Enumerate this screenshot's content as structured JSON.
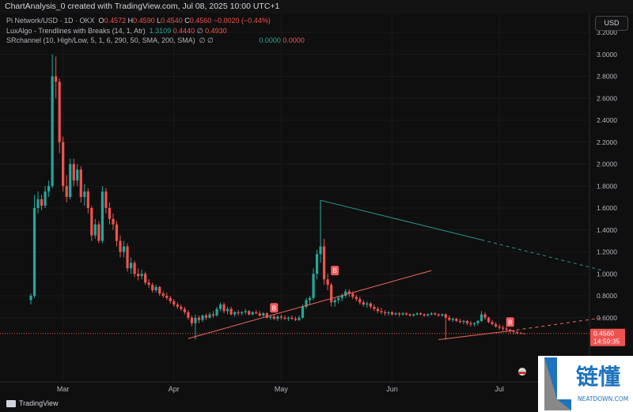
{
  "header": {
    "title": "ChartAnalysis_0 created with TradingView.com, Jul 08, 2025 10:00 UTC+1"
  },
  "legend": {
    "symbol": "Pi Network/USD · 1D · OKX",
    "o_label": "O",
    "o": "0.4572",
    "h_label": "H",
    "h": "0.4590",
    "l_label": "L",
    "l": "0.4540",
    "c_label": "C",
    "c": "0.4560",
    "change": "−0.0020 (−0.44%)",
    "ind1_name": "LuxAlgo - Trendlines with Breaks (14, 1, Atr)",
    "ind1_v1": "1.3109",
    "ind1_v2": "0.4440",
    "ind1_sym": "∅",
    "ind1_v3": "0.4930",
    "ind2_name": "SRchannel (10, High/Low, 5, 1, 6, 290, 50, SMA, 200, SMA)",
    "ind2_sym": "∅ ∅",
    "ind2_v1": "0.0000",
    "ind2_v2": "0.0000"
  },
  "currency_button": "USD",
  "price_tag": {
    "price": "0.4560",
    "countdown": "14:59:35"
  },
  "footer": {
    "brand": "TradingView"
  },
  "watermark": {
    "name": "链懂",
    "site": "NEATDOWN.COM"
  },
  "colors": {
    "up": "#26a69a",
    "down": "#ef5350",
    "resistance_line": "#2a8f8a",
    "support_line": "#f0685e",
    "break_label": "#f15b5b"
  },
  "chart_data": {
    "type": "candlestick",
    "start_date": "2025-02-20",
    "interval": "1D",
    "ylim": [
      0,
      3.2
    ],
    "yticks": [
      "0.6000",
      "0.8000",
      "1.0000",
      "1.2000",
      "1.4000",
      "1.6000",
      "1.8000",
      "2.0000",
      "2.2000",
      "2.4000",
      "2.6000",
      "2.8000",
      "3.0000",
      "3.2000"
    ],
    "xticks": [
      {
        "label": "Mar",
        "date": "2025-03-01"
      },
      {
        "label": "Apr",
        "date": "2025-04-01"
      },
      {
        "label": "May",
        "date": "2025-05-01"
      },
      {
        "label": "Jun",
        "date": "2025-06-01"
      },
      {
        "label": "Jul",
        "date": "2025-07-01"
      }
    ],
    "ohlc": [
      [
        0.76,
        0.82,
        0.72,
        0.8
      ],
      [
        0.8,
        1.72,
        0.78,
        1.6
      ],
      [
        1.6,
        1.75,
        1.55,
        1.68
      ],
      [
        1.68,
        1.72,
        1.58,
        1.62
      ],
      [
        1.62,
        1.8,
        1.6,
        1.75
      ],
      [
        1.75,
        1.85,
        1.7,
        1.8
      ],
      [
        1.8,
        3.0,
        1.78,
        2.8
      ],
      [
        2.8,
        2.98,
        2.6,
        2.75
      ],
      [
        2.75,
        2.78,
        2.1,
        2.2
      ],
      [
        2.2,
        2.25,
        1.75,
        1.8
      ],
      [
        1.8,
        1.9,
        1.65,
        1.7
      ],
      [
        1.7,
        2.05,
        1.68,
        2.0
      ],
      [
        2.0,
        2.05,
        1.8,
        1.85
      ],
      [
        1.85,
        2.0,
        1.8,
        1.95
      ],
      [
        1.95,
        1.98,
        1.65,
        1.7
      ],
      [
        1.7,
        1.82,
        1.62,
        1.75
      ],
      [
        1.75,
        1.78,
        1.55,
        1.6
      ],
      [
        1.6,
        1.62,
        1.3,
        1.35
      ],
      [
        1.35,
        1.5,
        1.32,
        1.45
      ],
      [
        1.45,
        1.48,
        1.28,
        1.3
      ],
      [
        1.3,
        1.8,
        1.28,
        1.75
      ],
      [
        1.75,
        1.78,
        1.55,
        1.6
      ],
      [
        1.6,
        1.65,
        1.45,
        1.5
      ],
      [
        1.5,
        1.55,
        1.4,
        1.45
      ],
      [
        1.45,
        1.48,
        1.25,
        1.3
      ],
      [
        1.3,
        1.35,
        1.15,
        1.2
      ],
      [
        1.2,
        1.3,
        1.15,
        1.25
      ],
      [
        1.25,
        1.28,
        1.02,
        1.05
      ],
      [
        1.05,
        1.15,
        1.0,
        1.1
      ],
      [
        1.1,
        1.12,
        0.97,
        1.0
      ],
      [
        1.0,
        1.05,
        0.94,
        0.98
      ],
      [
        0.98,
        1.04,
        0.95,
        1.0
      ],
      [
        1.0,
        1.02,
        0.9,
        0.92
      ],
      [
        0.92,
        0.95,
        0.87,
        0.9
      ],
      [
        0.9,
        0.92,
        0.83,
        0.85
      ],
      [
        0.85,
        0.9,
        0.83,
        0.88
      ],
      [
        0.88,
        0.89,
        0.8,
        0.82
      ],
      [
        0.82,
        0.84,
        0.78,
        0.8
      ],
      [
        0.8,
        0.83,
        0.76,
        0.78
      ],
      [
        0.78,
        0.8,
        0.73,
        0.75
      ],
      [
        0.75,
        0.77,
        0.7,
        0.72
      ],
      [
        0.72,
        0.74,
        0.68,
        0.7
      ],
      [
        0.7,
        0.72,
        0.66,
        0.68
      ],
      [
        0.68,
        0.7,
        0.63,
        0.65
      ],
      [
        0.65,
        0.67,
        0.58,
        0.6
      ],
      [
        0.6,
        0.62,
        0.52,
        0.55
      ],
      [
        0.55,
        0.63,
        0.4,
        0.6
      ],
      [
        0.6,
        0.62,
        0.55,
        0.58
      ],
      [
        0.58,
        0.63,
        0.56,
        0.62
      ],
      [
        0.62,
        0.64,
        0.58,
        0.6
      ],
      [
        0.6,
        0.65,
        0.59,
        0.63
      ],
      [
        0.63,
        0.66,
        0.6,
        0.62
      ],
      [
        0.62,
        0.7,
        0.61,
        0.68
      ],
      [
        0.68,
        0.74,
        0.66,
        0.72
      ],
      [
        0.72,
        0.74,
        0.64,
        0.66
      ],
      [
        0.66,
        0.7,
        0.63,
        0.68
      ],
      [
        0.68,
        0.7,
        0.62,
        0.63
      ],
      [
        0.63,
        0.66,
        0.61,
        0.65
      ],
      [
        0.65,
        0.67,
        0.62,
        0.64
      ],
      [
        0.64,
        0.66,
        0.62,
        0.65
      ],
      [
        0.65,
        0.68,
        0.63,
        0.66
      ],
      [
        0.66,
        0.67,
        0.62,
        0.63
      ],
      [
        0.63,
        0.66,
        0.62,
        0.65
      ],
      [
        0.65,
        0.67,
        0.63,
        0.64
      ],
      [
        0.64,
        0.66,
        0.61,
        0.62
      ],
      [
        0.62,
        0.65,
        0.6,
        0.64
      ],
      [
        0.64,
        0.65,
        0.59,
        0.6
      ],
      [
        0.6,
        0.63,
        0.58,
        0.61
      ],
      [
        0.61,
        0.63,
        0.58,
        0.59
      ],
      [
        0.59,
        0.62,
        0.57,
        0.61
      ],
      [
        0.61,
        0.63,
        0.58,
        0.6
      ],
      [
        0.6,
        0.62,
        0.58,
        0.59
      ],
      [
        0.59,
        0.61,
        0.57,
        0.6
      ],
      [
        0.6,
        0.62,
        0.58,
        0.59
      ],
      [
        0.59,
        0.61,
        0.57,
        0.58
      ],
      [
        0.58,
        0.62,
        0.57,
        0.6
      ],
      [
        0.6,
        0.72,
        0.59,
        0.7
      ],
      [
        0.7,
        0.78,
        0.68,
        0.76
      ],
      [
        0.76,
        0.8,
        0.72,
        0.78
      ],
      [
        0.78,
        1.05,
        0.76,
        1.0
      ],
      [
        1.0,
        1.22,
        0.95,
        1.18
      ],
      [
        1.18,
        1.67,
        1.1,
        1.25
      ],
      [
        1.25,
        1.32,
        0.9,
        0.95
      ],
      [
        0.95,
        1.0,
        0.85,
        0.9
      ],
      [
        0.9,
        0.92,
        0.7,
        0.74
      ],
      [
        0.74,
        0.78,
        0.7,
        0.76
      ],
      [
        0.76,
        0.8,
        0.73,
        0.78
      ],
      [
        0.78,
        0.82,
        0.75,
        0.8
      ],
      [
        0.8,
        0.86,
        0.78,
        0.84
      ],
      [
        0.84,
        0.86,
        0.79,
        0.82
      ],
      [
        0.82,
        0.84,
        0.77,
        0.79
      ],
      [
        0.79,
        0.81,
        0.75,
        0.77
      ],
      [
        0.77,
        0.79,
        0.72,
        0.74
      ],
      [
        0.74,
        0.76,
        0.7,
        0.72
      ],
      [
        0.72,
        0.75,
        0.69,
        0.73
      ],
      [
        0.73,
        0.74,
        0.68,
        0.7
      ],
      [
        0.7,
        0.72,
        0.66,
        0.68
      ],
      [
        0.68,
        0.7,
        0.64,
        0.66
      ],
      [
        0.66,
        0.69,
        0.63,
        0.65
      ],
      [
        0.65,
        0.67,
        0.62,
        0.64
      ],
      [
        0.64,
        0.66,
        0.62,
        0.65
      ],
      [
        0.65,
        0.66,
        0.62,
        0.63
      ],
      [
        0.63,
        0.65,
        0.62,
        0.64
      ],
      [
        0.64,
        0.65,
        0.61,
        0.63
      ],
      [
        0.63,
        0.65,
        0.62,
        0.64
      ],
      [
        0.64,
        0.65,
        0.62,
        0.63
      ],
      [
        0.63,
        0.64,
        0.61,
        0.62
      ],
      [
        0.62,
        0.64,
        0.61,
        0.63
      ],
      [
        0.63,
        0.65,
        0.62,
        0.64
      ],
      [
        0.64,
        0.65,
        0.62,
        0.63
      ],
      [
        0.63,
        0.64,
        0.61,
        0.62
      ],
      [
        0.62,
        0.64,
        0.61,
        0.63
      ],
      [
        0.63,
        0.65,
        0.62,
        0.64
      ],
      [
        0.64,
        0.65,
        0.62,
        0.63
      ],
      [
        0.63,
        0.64,
        0.61,
        0.62
      ],
      [
        0.62,
        0.64,
        0.61,
        0.63
      ],
      [
        0.63,
        0.64,
        0.4,
        0.6
      ],
      [
        0.6,
        0.62,
        0.57,
        0.58
      ],
      [
        0.58,
        0.6,
        0.56,
        0.59
      ],
      [
        0.59,
        0.6,
        0.56,
        0.57
      ],
      [
        0.57,
        0.59,
        0.55,
        0.56
      ],
      [
        0.56,
        0.58,
        0.54,
        0.57
      ],
      [
        0.57,
        0.58,
        0.53,
        0.55
      ],
      [
        0.55,
        0.57,
        0.52,
        0.54
      ],
      [
        0.54,
        0.56,
        0.52,
        0.55
      ],
      [
        0.55,
        0.58,
        0.53,
        0.57
      ],
      [
        0.57,
        0.66,
        0.56,
        0.63
      ],
      [
        0.63,
        0.65,
        0.58,
        0.6
      ],
      [
        0.6,
        0.61,
        0.55,
        0.56
      ],
      [
        0.56,
        0.58,
        0.53,
        0.54
      ],
      [
        0.54,
        0.56,
        0.51,
        0.52
      ],
      [
        0.52,
        0.54,
        0.49,
        0.51
      ],
      [
        0.51,
        0.53,
        0.48,
        0.5
      ],
      [
        0.5,
        0.52,
        0.47,
        0.49
      ],
      [
        0.49,
        0.5,
        0.46,
        0.48
      ],
      [
        0.48,
        0.49,
        0.45,
        0.47
      ],
      [
        0.47,
        0.48,
        0.45,
        0.46
      ],
      [
        0.46,
        0.47,
        0.45,
        0.457
      ],
      [
        0.4572,
        0.459,
        0.454,
        0.456
      ]
    ],
    "trendlines": [
      {
        "kind": "resistance",
        "from": {
          "day": 81,
          "price": 1.67
        },
        "solid_to": {
          "day": 126,
          "price": 1.31
        },
        "dashed_to": {
          "day": 160,
          "price": 1.03
        }
      },
      {
        "kind": "support",
        "from": {
          "day": 44,
          "price": 0.41
        },
        "solid_to": {
          "day": 112,
          "price": 1.03
        }
      },
      {
        "kind": "support",
        "from": {
          "day": 114,
          "price": 0.4
        },
        "solid_to": {
          "day": 134,
          "price": 0.48
        },
        "dashed_to": {
          "day": 160,
          "price": 0.6
        }
      }
    ],
    "break_labels": [
      {
        "text": "B",
        "day": 68,
        "price": 0.69
      },
      {
        "text": "B",
        "day": 85,
        "price": 1.03
      },
      {
        "text": "B",
        "day": 134,
        "price": 0.56
      }
    ],
    "last_price": 0.456
  }
}
